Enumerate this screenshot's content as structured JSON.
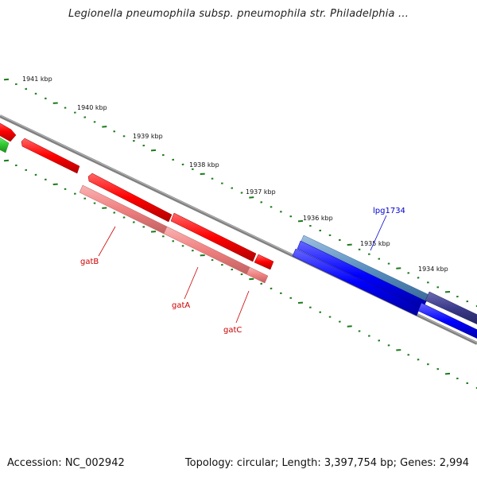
{
  "title": "Legionella pneumophila subsp. pneumophila str. Philadelphia ...",
  "footer": {
    "accession": "Accession: NC_002942",
    "summary": "Topology: circular; Length: 3,397,754 bp; Genes: 2,994"
  },
  "ticks": [
    "1941 kbp",
    "1940 kbp",
    "1939 kbp",
    "1938 kbp",
    "1937 kbp",
    "1936 kbp",
    "1935 kbp",
    "1934 kbp"
  ],
  "gene_labels": {
    "gatB": "gatB",
    "gatA": "gatA",
    "gatC": "gatC",
    "lpg1734": "lpg1734"
  },
  "colors": {
    "backbone": "#808080",
    "tick": "#1a7a1a",
    "cds_forward": "#ff0000",
    "cds_reverse": "#f08080",
    "cds_blue": "#0000ff",
    "cds_steel": "#5a8fc0",
    "cds_navy": "#3a3a8a",
    "cds_green": "#33cc33",
    "gene_label_red": "#cc0000",
    "gene_label_blue": "#0000cc"
  }
}
